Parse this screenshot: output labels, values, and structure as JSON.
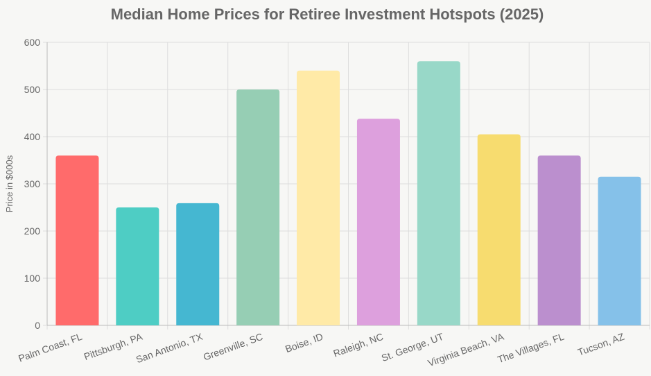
{
  "chart_data": {
    "type": "bar",
    "title": "Median Home Prices for Retiree Investment Hotspots (2025)",
    "xlabel": "",
    "ylabel": "Price in $000s",
    "ylim": [
      0,
      600
    ],
    "yticks": [
      0,
      100,
      200,
      300,
      400,
      500,
      600
    ],
    "grid": true,
    "categories": [
      "Palm Coast, FL",
      "Pittsburgh, PA",
      "San Antonio, TX",
      "Greenville, SC",
      "Boise, ID",
      "Raleigh, NC",
      "St. George, UT",
      "Virginia Beach, VA",
      "The Villages, FL",
      "Tucson, AZ"
    ],
    "values": [
      360,
      250,
      259,
      500,
      540,
      438,
      560,
      405,
      360,
      315
    ],
    "colors": [
      "#ff6b6b",
      "#4ecdc4",
      "#45b7d1",
      "#96ceb4",
      "#ffeaa7",
      "#dda0dd",
      "#98d8c8",
      "#f7dc6f",
      "#bb8fce",
      "#85c1e9"
    ]
  }
}
